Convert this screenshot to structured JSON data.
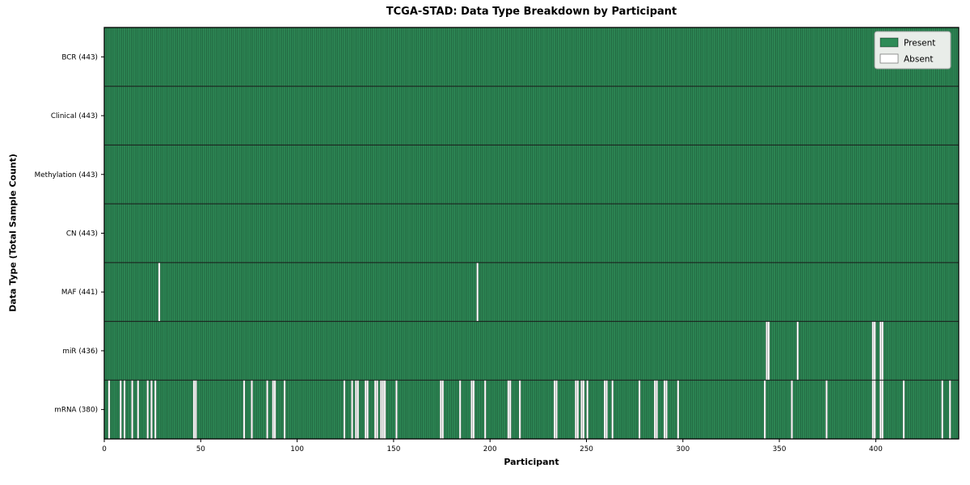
{
  "chart_data": {
    "type": "heatmap",
    "title": "TCGA-STAD: Data Type Breakdown by Participant",
    "xlabel": "Participant",
    "ylabel": "Data Type (Total Sample Count)",
    "n_participants": 443,
    "xlim": [
      0,
      443
    ],
    "x_ticks": [
      0,
      50,
      100,
      150,
      200,
      250,
      300,
      350,
      400
    ],
    "legend": {
      "position": "upper right",
      "entries": [
        {
          "label": "Present",
          "color": "#2E8B57"
        },
        {
          "label": "Absent",
          "color": "#FFFFFF"
        }
      ]
    },
    "rows": [
      {
        "label": "BCR (443)",
        "name": "BCR",
        "total": 443,
        "absent": []
      },
      {
        "label": "Clinical (443)",
        "name": "Clinical",
        "total": 443,
        "absent": []
      },
      {
        "label": "Methylation (443)",
        "name": "Methylation",
        "total": 443,
        "absent": []
      },
      {
        "label": "CN (443)",
        "name": "CN",
        "total": 443,
        "absent": []
      },
      {
        "label": "MAF (441)",
        "name": "MAF",
        "total": 441,
        "absent": [
          28,
          193
        ]
      },
      {
        "label": "miR (436)",
        "name": "miR",
        "total": 436,
        "absent": [
          343,
          344,
          359,
          398,
          399,
          402,
          403
        ]
      },
      {
        "label": "mRNA (380)",
        "name": "mRNA",
        "total": 380,
        "absent": [
          2,
          8,
          10,
          14,
          17,
          22,
          24,
          26,
          46,
          47,
          72,
          76,
          84,
          87,
          88,
          93,
          124,
          128,
          130,
          131,
          135,
          136,
          140,
          141,
          143,
          144,
          145,
          151,
          174,
          175,
          184,
          190,
          191,
          197,
          209,
          210,
          215,
          233,
          234,
          244,
          245,
          247,
          248,
          250,
          259,
          260,
          263,
          277,
          285,
          286,
          290,
          291,
          297,
          342,
          356,
          374,
          398,
          399,
          402,
          403,
          414,
          434,
          438
        ]
      }
    ],
    "colors": {
      "present": "#2E8B57",
      "absent": "#FFFFFF",
      "bar_edge": "rgba(0,0,0,0.38)",
      "row_separator": "#1a1a1a",
      "plot_border": "#000000",
      "legend_bg": "#e9ede9",
      "legend_border": "#aaaaaa",
      "background": "#ffffff"
    }
  }
}
